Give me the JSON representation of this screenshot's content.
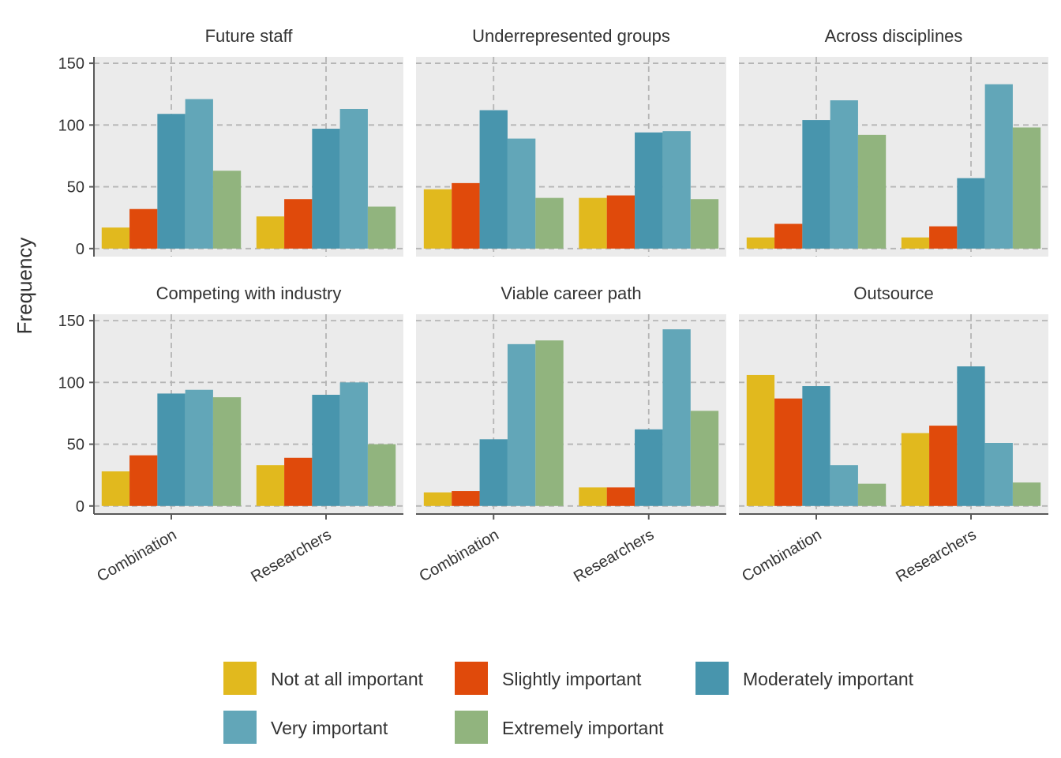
{
  "chart_data": {
    "type": "bar",
    "layout": "faceted-grouped-bar",
    "ylabel": "Frequency",
    "xlabel": "",
    "ylim": [
      0,
      150
    ],
    "yticks": [
      0,
      50,
      100,
      150
    ],
    "grid": "dashed",
    "legend_position": "bottom",
    "categories": [
      "Combination",
      "Researchers"
    ],
    "levels": [
      {
        "name": "Not at all important",
        "color": "#E1B91E"
      },
      {
        "name": "Slightly important",
        "color": "#E04A0B"
      },
      {
        "name": "Moderately important",
        "color": "#4895AD"
      },
      {
        "name": "Very important",
        "color": "#62A6B8"
      },
      {
        "name": "Extremely important",
        "color": "#91B47E"
      }
    ],
    "panels": [
      {
        "title": "Future staff",
        "values": [
          [
            17,
            32,
            109,
            121,
            63
          ],
          [
            26,
            40,
            97,
            113,
            34
          ]
        ]
      },
      {
        "title": "Underrepresented groups",
        "values": [
          [
            48,
            53,
            112,
            89,
            41
          ],
          [
            41,
            43,
            94,
            95,
            40
          ]
        ]
      },
      {
        "title": "Across disciplines",
        "values": [
          [
            9,
            20,
            104,
            120,
            92
          ],
          [
            9,
            18,
            57,
            133,
            98
          ]
        ]
      },
      {
        "title": "Competing with industry",
        "values": [
          [
            28,
            41,
            91,
            94,
            88
          ],
          [
            33,
            39,
            90,
            100,
            50
          ]
        ]
      },
      {
        "title": "Viable career path",
        "values": [
          [
            11,
            12,
            54,
            131,
            134
          ],
          [
            15,
            15,
            62,
            143,
            77
          ]
        ]
      },
      {
        "title": "Outsource",
        "values": [
          [
            106,
            87,
            97,
            33,
            18
          ],
          [
            59,
            65,
            113,
            51,
            19
          ]
        ]
      }
    ]
  }
}
